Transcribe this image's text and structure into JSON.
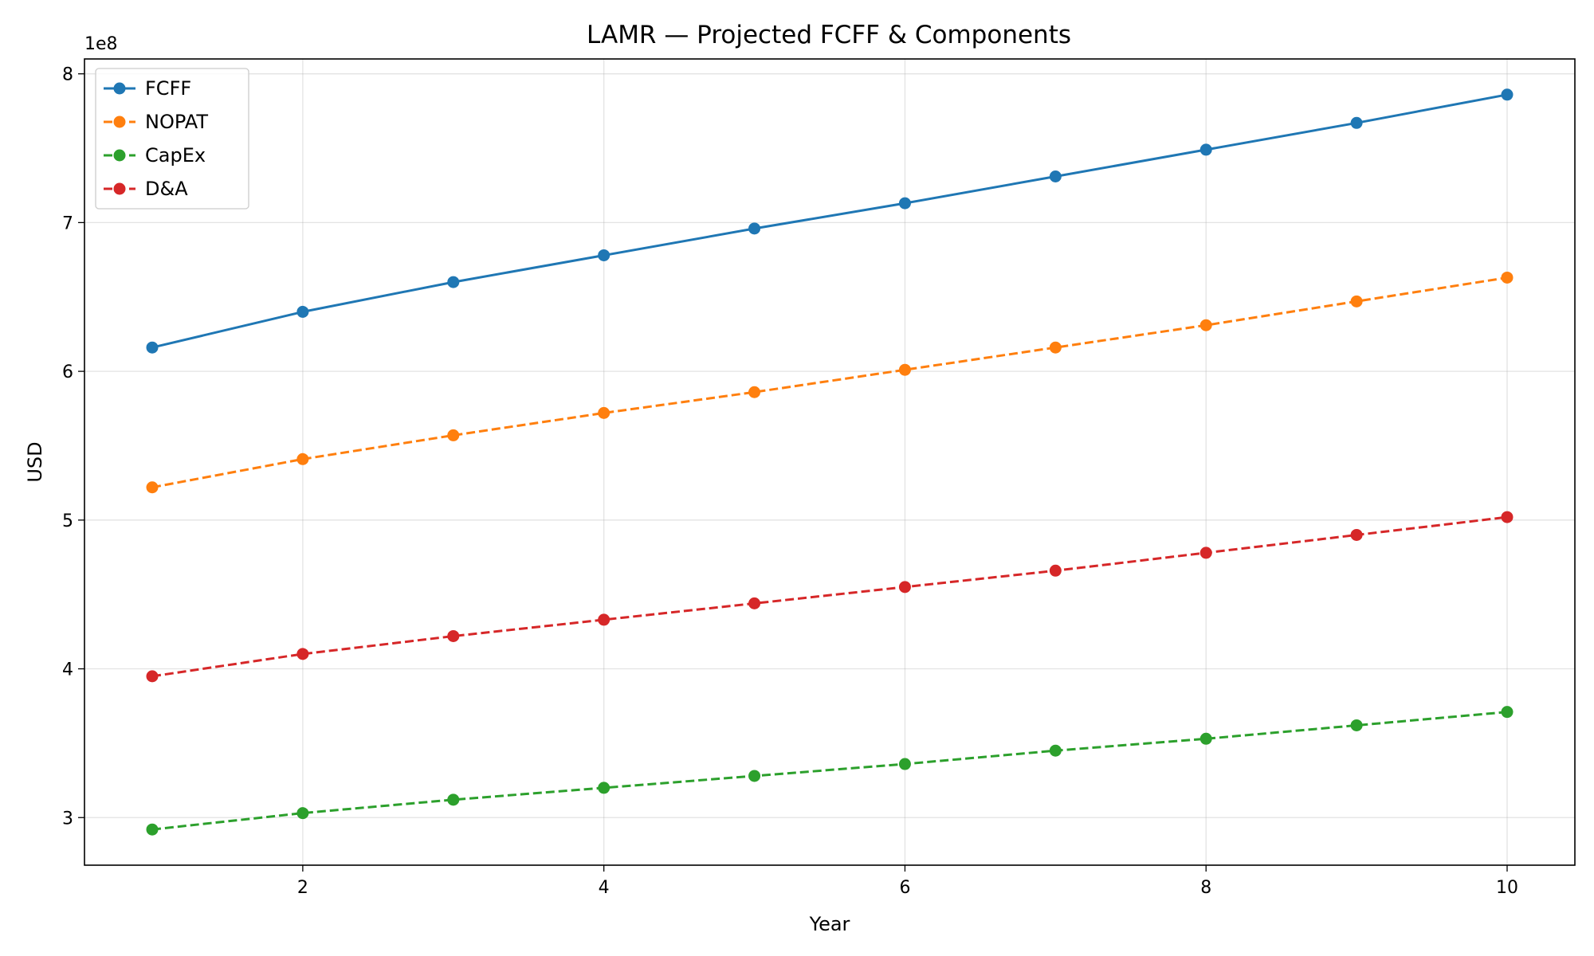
{
  "chart_data": {
    "type": "line",
    "title": "LAMR — Projected FCFF & Components",
    "xlabel": "Year",
    "ylabel": "USD",
    "offset_text": "1e8",
    "x": [
      1,
      2,
      3,
      4,
      5,
      6,
      7,
      8,
      9,
      10
    ],
    "xlim": [
      0.55,
      10.45
    ],
    "ylim": [
      2.68,
      8.1
    ],
    "x_ticks": [
      2,
      4,
      6,
      8,
      10
    ],
    "y_ticks": [
      3,
      4,
      5,
      6,
      7,
      8
    ],
    "grid": true,
    "legend_position": "top-left",
    "series": [
      {
        "name": "FCFF",
        "color": "#1f77b4",
        "dashed": false,
        "values": [
          6.16,
          6.4,
          6.6,
          6.78,
          6.96,
          7.13,
          7.31,
          7.49,
          7.67,
          7.86
        ]
      },
      {
        "name": "NOPAT",
        "color": "#ff7f0e",
        "dashed": true,
        "values": [
          5.22,
          5.41,
          5.57,
          5.72,
          5.86,
          6.01,
          6.16,
          6.31,
          6.47,
          6.63
        ]
      },
      {
        "name": "CapEx",
        "color": "#2ca02c",
        "dashed": true,
        "values": [
          2.92,
          3.03,
          3.12,
          3.2,
          3.28,
          3.36,
          3.45,
          3.53,
          3.62,
          3.71
        ]
      },
      {
        "name": "D&A",
        "color": "#d62728",
        "dashed": true,
        "values": [
          3.95,
          4.1,
          4.22,
          4.33,
          4.44,
          4.55,
          4.66,
          4.78,
          4.9,
          5.02
        ]
      }
    ]
  }
}
